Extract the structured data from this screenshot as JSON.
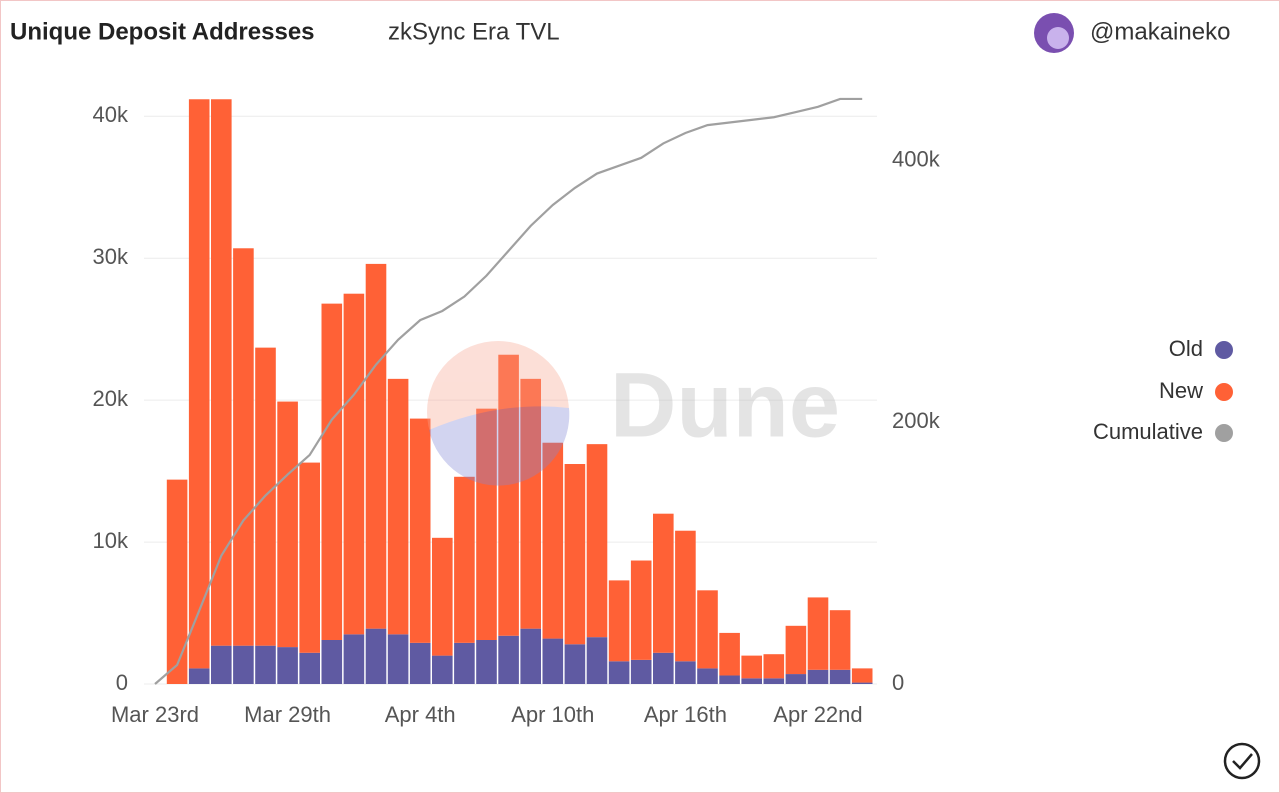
{
  "chart_data": {
    "type": "bar",
    "title": "Unique Deposit Addresses",
    "subtitle": "zkSync Era TVL",
    "author": "@makaineko",
    "watermark": "Dune",
    "stacked": true,
    "legend": "right",
    "grid": true,
    "categories": [
      "Mar 23rd",
      null,
      null,
      null,
      null,
      null,
      "Mar 29th",
      null,
      null,
      null,
      null,
      null,
      "Apr 4th",
      null,
      null,
      null,
      null,
      null,
      "Apr 10th",
      null,
      null,
      null,
      null,
      null,
      "Apr 16th",
      null,
      null,
      null,
      null,
      null,
      "Apr 22nd",
      null,
      null
    ],
    "series": [
      {
        "name": "Old",
        "color": "#5f5aa2",
        "values": [
          null,
          0,
          1100,
          2700,
          2700,
          2700,
          2600,
          2200,
          3100,
          3500,
          3900,
          3500,
          2900,
          2000,
          2900,
          3100,
          3400,
          3900,
          3200,
          2800,
          3300,
          1600,
          1700,
          2200,
          1600,
          1100,
          600,
          400,
          400,
          700,
          1000,
          1000,
          100
        ]
      },
      {
        "name": "New",
        "color": "#ff6136",
        "values": [
          null,
          14400,
          40100,
          38500,
          28000,
          21000,
          17300,
          13400,
          23700,
          24000,
          25700,
          18000,
          15800,
          8300,
          11700,
          16300,
          19800,
          17600,
          13800,
          12700,
          13600,
          5700,
          7000,
          9800,
          9200,
          5500,
          3000,
          1600,
          1700,
          3400,
          5100,
          4200,
          1000
        ]
      },
      {
        "name": "Cumulative",
        "color": "#a0a0a0",
        "type": "line",
        "axis": "y2",
        "values": [
          0,
          14500,
          56000,
          98000,
          125000,
          144000,
          160000,
          175000,
          202000,
          221000,
          244000,
          263000,
          278000,
          285000,
          296000,
          312000,
          331000,
          350000,
          366000,
          379000,
          390000,
          396000,
          402000,
          413000,
          421000,
          427000,
          429000,
          431000,
          433000,
          437000,
          441000,
          447000,
          447000
        ]
      }
    ],
    "ylim": [
      0,
      41500
    ],
    "yticks": [
      0,
      {
        "value": 10000,
        "label": "10k"
      },
      {
        "value": 20000,
        "label": "20k"
      },
      {
        "value": 30000,
        "label": "30k"
      },
      {
        "value": 40000,
        "label": "40k"
      }
    ],
    "y2lim": [
      0,
      450000
    ],
    "y2ticks": [
      0,
      {
        "value": 200000,
        "label": "200k"
      },
      {
        "value": 400000,
        "label": "400k"
      }
    ]
  }
}
